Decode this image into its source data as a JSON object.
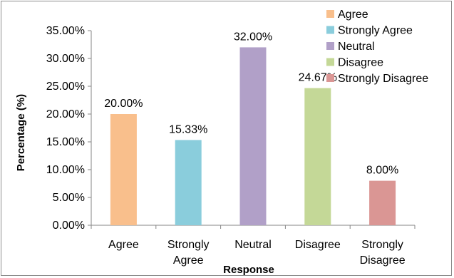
{
  "chart_data": {
    "type": "bar",
    "categories": [
      "Agree",
      "Strongly Agree",
      "Neutral",
      "Disagree",
      "Strongly Disagree"
    ],
    "values": [
      20.0,
      15.33,
      32.0,
      24.67,
      8.0
    ],
    "value_labels": [
      "20.00%",
      "15.33%",
      "32.00%",
      "24.67%",
      "8.00%"
    ],
    "colors": [
      "#F9BF8C",
      "#8ACDDC",
      "#B1A0C8",
      "#C4D897",
      "#DA9694"
    ],
    "xlabel": "Response",
    "ylabel": "Percentage (%)",
    "ylim": [
      0,
      35
    ],
    "yticks": [
      0,
      5,
      10,
      15,
      20,
      25,
      30,
      35
    ],
    "ytick_labels": [
      "0.00%",
      "5.00%",
      "10.00%",
      "15.00%",
      "20.00%",
      "25.00%",
      "30.00%",
      "35.00%"
    ],
    "legend": {
      "position": "top-right",
      "entries": [
        "Agree",
        "Strongly Agree",
        "Neutral",
        "Disagree",
        "Strongly Disagree"
      ]
    },
    "grid": false
  }
}
